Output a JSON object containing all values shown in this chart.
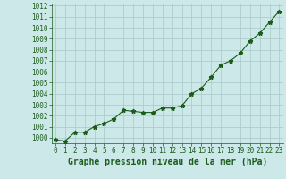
{
  "x": [
    0,
    1,
    2,
    3,
    4,
    5,
    6,
    7,
    8,
    9,
    10,
    11,
    12,
    13,
    14,
    15,
    16,
    17,
    18,
    19,
    20,
    21,
    22,
    23
  ],
  "y": [
    999.8,
    999.7,
    1000.5,
    1000.5,
    1001.0,
    1001.3,
    1001.7,
    1002.5,
    1002.4,
    1002.3,
    1002.3,
    1002.7,
    1002.7,
    1002.9,
    1004.0,
    1004.5,
    1005.5,
    1006.6,
    1007.0,
    1007.7,
    1008.8,
    1009.5,
    1010.5,
    1011.5
  ],
  "ylim": [
    999.5,
    1012.2
  ],
  "yticks": [
    1000,
    1001,
    1002,
    1003,
    1004,
    1005,
    1006,
    1007,
    1008,
    1009,
    1010,
    1011,
    1012
  ],
  "xlim": [
    -0.4,
    23.4
  ],
  "xticks": [
    0,
    1,
    2,
    3,
    4,
    5,
    6,
    7,
    8,
    9,
    10,
    11,
    12,
    13,
    14,
    15,
    16,
    17,
    18,
    19,
    20,
    21,
    22,
    23
  ],
  "line_color": "#1a5c1a",
  "marker": "*",
  "marker_color": "#1a5c1a",
  "bg_color": "#cce8e8",
  "grid_color": "#aac8c8",
  "xlabel": "Graphe pression niveau de la mer (hPa)",
  "xlabel_color": "#1a5c1a",
  "xlabel_fontsize": 7,
  "tick_fontsize": 5.5,
  "tick_color": "#1a5c1a",
  "line_width": 0.8,
  "marker_size": 3.5
}
